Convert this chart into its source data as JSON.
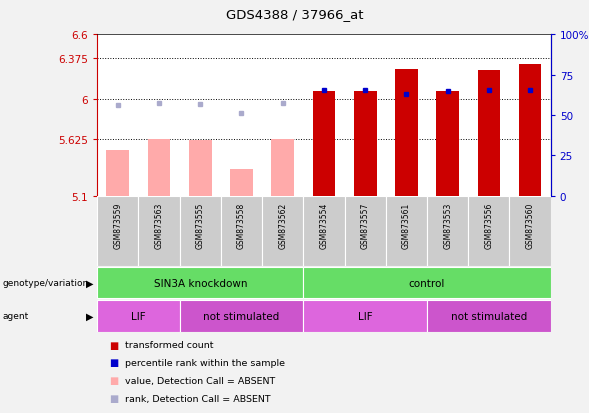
{
  "title": "GDS4388 / 37966_at",
  "samples": [
    "GSM873559",
    "GSM873563",
    "GSM873555",
    "GSM873558",
    "GSM873562",
    "GSM873554",
    "GSM873557",
    "GSM873561",
    "GSM873553",
    "GSM873556",
    "GSM873560"
  ],
  "bar_values": [
    5.52,
    5.625,
    5.62,
    5.35,
    5.625,
    6.07,
    6.07,
    6.28,
    6.07,
    6.27,
    6.32
  ],
  "bar_absent": [
    true,
    true,
    true,
    true,
    true,
    false,
    false,
    false,
    false,
    false,
    false
  ],
  "percentile_values": [
    5.94,
    5.96,
    5.95,
    5.87,
    5.96,
    6.08,
    6.08,
    6.04,
    6.07,
    6.08,
    6.08
  ],
  "percentile_absent": [
    true,
    true,
    true,
    true,
    true,
    false,
    false,
    false,
    false,
    false,
    false
  ],
  "ylim_left": [
    5.1,
    6.6
  ],
  "ylim_right": [
    0,
    100
  ],
  "yticks_left": [
    5.1,
    5.625,
    6.0,
    6.375,
    6.6
  ],
  "ytick_labels_left": [
    "5.1",
    "5.625",
    "6",
    "6.375",
    "6.6"
  ],
  "yticks_right": [
    0,
    25,
    50,
    75,
    100
  ],
  "ytick_labels_right": [
    "0",
    "25",
    "50",
    "75",
    "100%"
  ],
  "hlines": [
    5.625,
    6.0,
    6.375
  ],
  "bar_color_present": "#cc0000",
  "bar_color_absent": "#ffaaaa",
  "percentile_color_present": "#0000cc",
  "percentile_color_absent": "#aaaacc",
  "bar_width": 0.55,
  "base_value": 5.1,
  "genotype_groups": [
    {
      "label": "SIN3A knockdown",
      "start": 0,
      "end": 5,
      "color": "#66dd66"
    },
    {
      "label": "control",
      "start": 5,
      "end": 11,
      "color": "#66dd66"
    }
  ],
  "agent_groups": [
    {
      "label": "LIF",
      "start": 0,
      "end": 2,
      "color": "#dd66dd"
    },
    {
      "label": "not stimulated",
      "start": 2,
      "end": 5,
      "color": "#cc55cc"
    },
    {
      "label": "LIF",
      "start": 5,
      "end": 8,
      "color": "#dd66dd"
    },
    {
      "label": "not stimulated",
      "start": 8,
      "end": 11,
      "color": "#cc55cc"
    }
  ],
  "legend_items": [
    {
      "label": "transformed count",
      "color": "#cc0000"
    },
    {
      "label": "percentile rank within the sample",
      "color": "#0000cc"
    },
    {
      "label": "value, Detection Call = ABSENT",
      "color": "#ffaaaa"
    },
    {
      "label": "rank, Detection Call = ABSENT",
      "color": "#aaaacc"
    }
  ],
  "bg_color": "#f2f2f2",
  "plot_bg": "#ffffff",
  "axis_left_color": "#cc0000",
  "axis_right_color": "#0000cc"
}
